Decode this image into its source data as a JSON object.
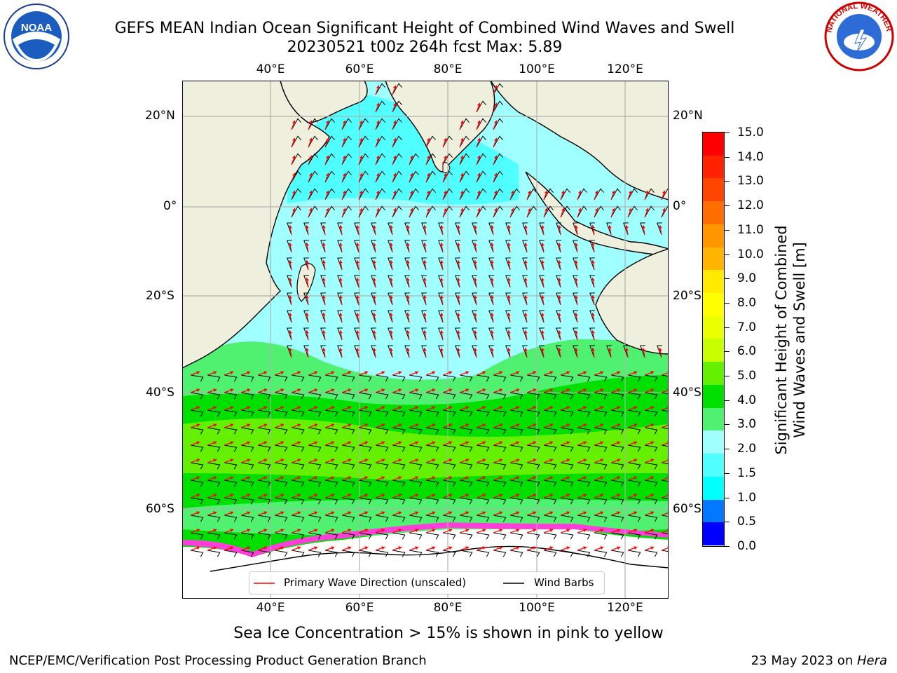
{
  "title": {
    "line1": "GEFS MEAN Indian Ocean Significant Height of Combined Wind Waves and Swell",
    "line2": "20230521 t00z 264h fcst   Max: 5.89"
  },
  "logos": {
    "left": "NOAA",
    "right": "NATIONAL WEATHER SERVICE"
  },
  "map": {
    "lon_labels": [
      "40°E",
      "60°E",
      "80°E",
      "100°E",
      "120°E"
    ],
    "lat_labels": [
      "20°N",
      "0°",
      "20°S",
      "40°S",
      "60°S"
    ],
    "colors": {
      "land": "#efefde",
      "ice_shelf": "#ffffff",
      "sea_ice": "#ff3fd8",
      "barb": "#000000",
      "arrow": "#ff0000"
    }
  },
  "legend": {
    "wave_direction": "Primary Wave Direction (unscaled)",
    "wind_barbs": "Wind Barbs"
  },
  "colorbar": {
    "label_line1": "Significant Height of Combined",
    "label_line2": "Wind Waves and Swell [m]",
    "ticks": [
      "15.0",
      "14.0",
      "13.0",
      "12.0",
      "11.0",
      "10.0",
      "9.0",
      "8.0",
      "7.0",
      "6.0",
      "5.0",
      "4.0",
      "3.0",
      "2.0",
      "1.5",
      "1.0",
      "0.5",
      "0.0"
    ],
    "colors": [
      "#ff0000",
      "#ff2300",
      "#ff4600",
      "#ff6e00",
      "#ff9600",
      "#ffb400",
      "#ffea00",
      "#ffff00",
      "#eaff00",
      "#c8ff00",
      "#64f000",
      "#00e000",
      "#50f070",
      "#a0ffff",
      "#50ffff",
      "#00ffff",
      "#0078ff",
      "#0000ff"
    ]
  },
  "footer": {
    "sea_ice_note": "Sea Ice Concentration > 15% is shown in pink to yellow",
    "credit": "NCEP/EMC/Verification Post Processing Product Generation Branch",
    "date_prefix": "23 May 2023 on ",
    "machine": "Hera"
  }
}
